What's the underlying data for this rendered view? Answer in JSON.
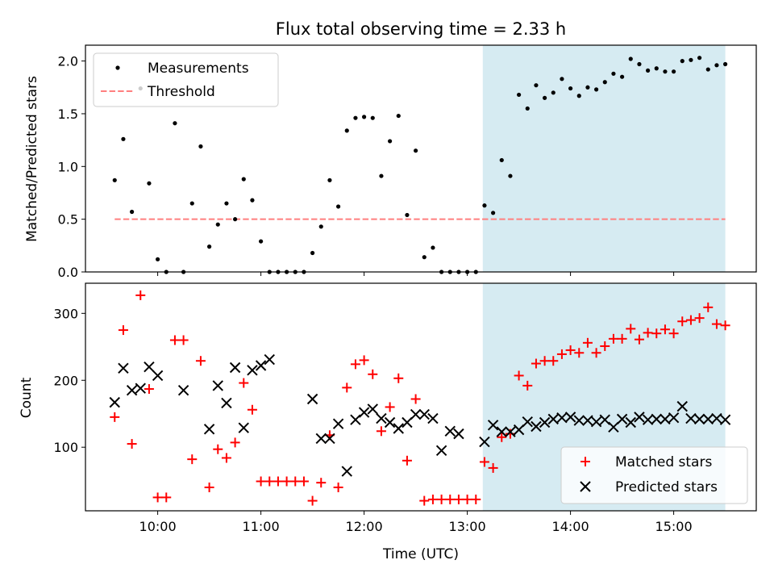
{
  "chart_data": [
    {
      "type": "scatter",
      "title": "Flux total observing time = 2.33 h",
      "xlabel": "",
      "ylabel": "Matched/Predicted stars",
      "xlim": [
        "09:18",
        "15:48"
      ],
      "ylim": [
        0,
        2.15
      ],
      "yticks": [
        "0.0",
        "0.5",
        "1.0",
        "1.5",
        "2.0"
      ],
      "legend_position": "top-left",
      "shaded_region": {
        "x": [
          "13:09",
          "15:30"
        ],
        "color": "#add8e6"
      },
      "series": [
        {
          "name": "Measurements",
          "marker": "dot",
          "color": "#000000",
          "x": [
            "09:35",
            "09:40",
            "09:45",
            "09:50",
            "09:55",
            "10:00",
            "10:05",
            "10:10",
            "10:15",
            "10:20",
            "10:25",
            "10:30",
            "10:35",
            "10:40",
            "10:45",
            "10:50",
            "10:55",
            "11:00",
            "11:05",
            "11:10",
            "11:15",
            "11:20",
            "11:25",
            "11:30",
            "11:35",
            "11:40",
            "11:45",
            "11:50",
            "11:55",
            "12:00",
            "12:05",
            "12:10",
            "12:15",
            "12:20",
            "12:25",
            "12:30",
            "12:35",
            "12:40",
            "12:45",
            "12:50",
            "12:55",
            "13:00",
            "13:05",
            "13:10",
            "13:15",
            "13:20",
            "13:25",
            "13:30",
            "13:35",
            "13:40",
            "13:45",
            "13:50",
            "13:55",
            "14:00",
            "14:05",
            "14:10",
            "14:15",
            "14:20",
            "14:25",
            "14:30",
            "14:35",
            "14:40",
            "14:45",
            "14:50",
            "14:55",
            "15:00",
            "15:05",
            "15:10",
            "15:15",
            "15:20",
            "15:25",
            "15:30"
          ],
          "values": [
            0.87,
            1.26,
            0.57,
            1.74,
            0.84,
            0.12,
            0.0,
            1.41,
            0.0,
            0.65,
            1.19,
            0.24,
            0.45,
            0.65,
            0.5,
            0.88,
            0.68,
            0.29,
            0.0,
            0.0,
            0.0,
            0.0,
            0.0,
            0.18,
            0.43,
            0.87,
            0.62,
            1.34,
            1.46,
            1.47,
            1.46,
            0.91,
            1.24,
            1.48,
            0.54,
            1.15,
            0.14,
            0.23,
            0.0,
            0.0,
            0.0,
            0.0,
            0.0,
            0.63,
            0.56,
            1.06,
            0.91,
            1.68,
            1.55,
            1.77,
            1.65,
            1.7,
            1.83,
            1.74,
            1.67,
            1.75,
            1.73,
            1.8,
            1.88,
            1.85,
            2.02,
            1.97,
            1.91,
            1.93,
            1.9,
            1.9,
            2.0,
            2.01,
            2.03,
            1.92,
            1.96,
            1.97
          ]
        },
        {
          "name": "Threshold",
          "style": "dashed",
          "color": "#ff7f7f",
          "x": [
            "09:35",
            "15:30"
          ],
          "values": [
            0.5,
            0.5
          ]
        }
      ]
    },
    {
      "type": "scatter",
      "title": "",
      "xlabel": "Time (UTC)",
      "ylabel": "Count",
      "xlim": [
        "09:18",
        "15:48"
      ],
      "ylim": [
        5,
        345
      ],
      "yticks": [
        "100",
        "200",
        "300"
      ],
      "xticks": [
        "10:00",
        "11:00",
        "12:00",
        "13:00",
        "14:00",
        "15:00"
      ],
      "legend_position": "bottom-right",
      "shaded_region": {
        "x": [
          "13:09",
          "15:30"
        ],
        "color": "#add8e6"
      },
      "series": [
        {
          "name": "Matched stars",
          "marker": "plus",
          "color": "#ff0000",
          "x": [
            "09:35",
            "09:40",
            "09:45",
            "09:50",
            "09:55",
            "10:00",
            "10:05",
            "10:10",
            "10:15",
            "10:20",
            "10:25",
            "10:30",
            "10:35",
            "10:40",
            "10:45",
            "10:50",
            "10:55",
            "11:00",
            "11:05",
            "11:10",
            "11:15",
            "11:20",
            "11:25",
            "11:30",
            "11:35",
            "11:40",
            "11:45",
            "11:50",
            "11:55",
            "12:00",
            "12:05",
            "12:10",
            "12:15",
            "12:20",
            "12:25",
            "12:30",
            "12:35",
            "12:40",
            "12:45",
            "12:50",
            "12:55",
            "13:00",
            "13:05",
            "13:10",
            "13:15",
            "13:20",
            "13:25",
            "13:30",
            "13:35",
            "13:40",
            "13:45",
            "13:50",
            "13:55",
            "14:00",
            "14:05",
            "14:10",
            "14:15",
            "14:20",
            "14:25",
            "14:30",
            "14:35",
            "14:40",
            "14:45",
            "14:50",
            "14:55",
            "15:00",
            "15:05",
            "15:10",
            "15:15",
            "15:20",
            "15:25",
            "15:30"
          ],
          "values": [
            145,
            275,
            105,
            327,
            187,
            25,
            25,
            260,
            260,
            82,
            229,
            40,
            97,
            84,
            107,
            196,
            156,
            49,
            49,
            49,
            49,
            49,
            49,
            20,
            47,
            118,
            40,
            189,
            224,
            230,
            209,
            124,
            160,
            203,
            80,
            172,
            20,
            22,
            22,
            22,
            22,
            22,
            22,
            78,
            69,
            115,
            120,
            207,
            192,
            225,
            229,
            229,
            239,
            245,
            241,
            256,
            241,
            251,
            262,
            262,
            277,
            261,
            271,
            270,
            276,
            270,
            288,
            290,
            293,
            309,
            284,
            282
          ]
        },
        {
          "name": "Predicted stars",
          "marker": "x",
          "color": "#000000",
          "x": [
            "09:35",
            "09:40",
            "09:45",
            "09:50",
            "09:55",
            "10:00",
            "10:15",
            "10:30",
            "10:35",
            "10:40",
            "10:45",
            "10:50",
            "10:55",
            "11:00",
            "11:05",
            "11:30",
            "11:35",
            "11:40",
            "11:45",
            "11:50",
            "11:55",
            "12:00",
            "12:05",
            "12:10",
            "12:15",
            "12:20",
            "12:25",
            "12:30",
            "12:35",
            "12:40",
            "12:45",
            "12:50",
            "12:55",
            "13:10",
            "13:15",
            "13:20",
            "13:25",
            "13:30",
            "13:35",
            "13:40",
            "13:45",
            "13:50",
            "13:55",
            "14:00",
            "14:05",
            "14:10",
            "14:15",
            "14:20",
            "14:25",
            "14:30",
            "14:35",
            "14:40",
            "14:45",
            "14:50",
            "14:55",
            "15:00",
            "15:05",
            "15:10",
            "15:15",
            "15:20",
            "15:25",
            "15:30"
          ],
          "values": [
            167,
            218,
            185,
            188,
            220,
            207,
            185,
            127,
            192,
            166,
            219,
            129,
            215,
            222,
            231,
            172,
            113,
            113,
            135,
            64,
            141,
            152,
            157,
            143,
            137,
            128,
            137,
            149,
            149,
            143,
            95,
            124,
            120,
            108,
            133,
            123,
            123,
            126,
            138,
            131,
            137,
            142,
            144,
            145,
            140,
            140,
            138,
            141,
            130,
            142,
            137,
            145,
            141,
            142,
            142,
            144,
            161,
            143,
            142,
            142,
            143,
            141
          ]
        }
      ]
    }
  ]
}
